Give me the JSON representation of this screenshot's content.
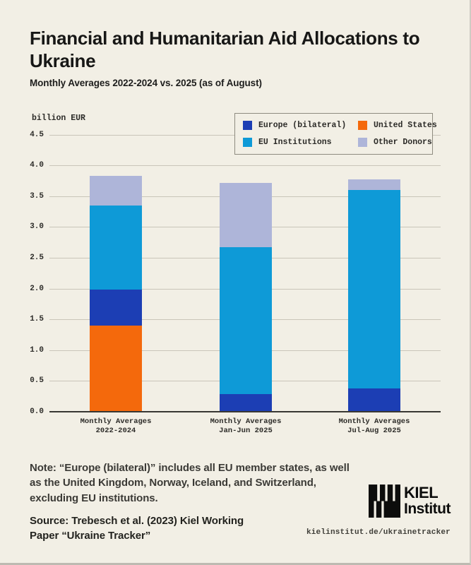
{
  "page": {
    "title": "Financial and Humanitarian Aid Allocations to Ukraine",
    "subtitle": "Monthly Averages 2022-2024 vs. 2025 (as of August)"
  },
  "chart_data": {
    "type": "bar",
    "stacked": true,
    "title": "Financial and Humanitarian Aid Allocations to Ukraine",
    "subtitle": "Monthly Averages 2022-2024 vs. 2025 (as of August)",
    "ylabel": "billion EUR",
    "xlabel": "",
    "ylim": [
      0,
      4.5
    ],
    "ytick_step": 0.5,
    "grid": true,
    "legend_position": "top-right",
    "categories": [
      "Monthly Averages\n2022-2024",
      "Monthly Averages\nJan-Jun 2025",
      "Monthly Averages\nJul-Aug 2025"
    ],
    "series": [
      {
        "name": "United States",
        "color": "#f4690c",
        "values": [
          1.39,
          0,
          0
        ]
      },
      {
        "name": "Europe (bilateral)",
        "color": "#1c3eb4",
        "values": [
          0.58,
          0.28,
          0.37
        ]
      },
      {
        "name": "EU Institutions",
        "color": "#0e9ad7",
        "values": [
          1.37,
          2.38,
          3.22
        ]
      },
      {
        "name": "Other Donors",
        "color": "#aeb5d9",
        "values": [
          0.48,
          1.04,
          0.17
        ]
      }
    ],
    "totals": [
      3.82,
      3.7,
      3.76
    ],
    "legend": {
      "items": [
        {
          "label": "Europe (bilateral)",
          "color": "#1c3eb4"
        },
        {
          "label": "United States",
          "color": "#f4690c"
        },
        {
          "label": "EU Institutions",
          "color": "#0e9ad7"
        },
        {
          "label": "Other Donors",
          "color": "#aeb5d9"
        }
      ]
    }
  },
  "footer": {
    "note": "Note: “Europe (bilateral)” includes all EU member states, as well as the United Kingdom, Norway, Iceland, and Switzerland, excluding EU institutions.",
    "source": "Source: Trebesch et al. (2023) Kiel Working Paper “Ukraine Tracker”",
    "website": "kielinstitut.de/ukrainetracker",
    "logo_line1": "KIEL",
    "logo_line2": "Institut"
  }
}
